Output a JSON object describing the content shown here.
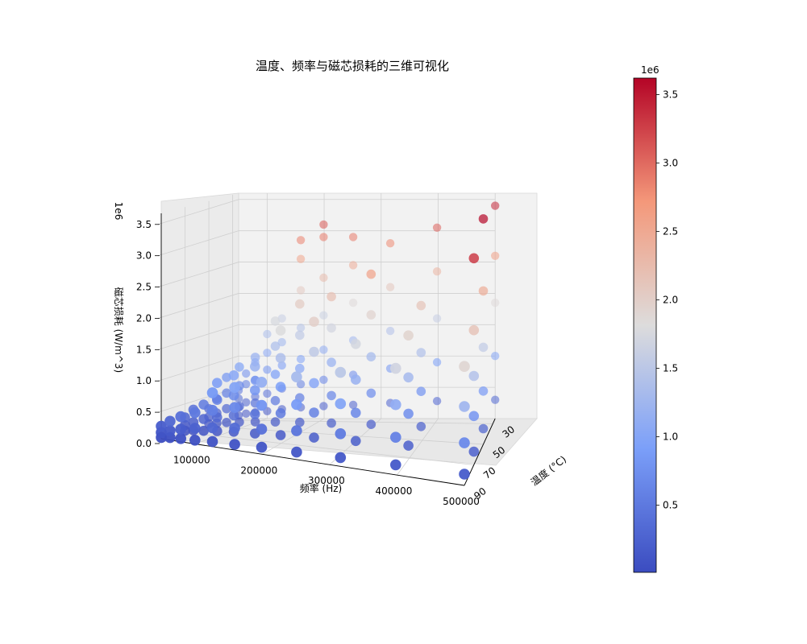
{
  "chart_data": {
    "type": "scatter",
    "projection": "3d",
    "title": "温度、频率与磁芯损耗的三维可视化",
    "xlabel": "频率 (Hz)",
    "ylabel": "温度 (°C)",
    "zlabel": "磁芯损耗 (W/m^3)",
    "z_offset_label": "1e6",
    "xlim": [
      50000,
      500000
    ],
    "ylim": [
      25,
      90
    ],
    "zlim": [
      0,
      3.6
    ],
    "x_ticks": [
      "100000",
      "200000",
      "300000",
      "400000",
      "500000"
    ],
    "y_ticks": [
      "30",
      "50",
      "70",
      "90"
    ],
    "z_ticks": [
      "0.0",
      "0.5",
      "1.0",
      "1.5",
      "2.0",
      "2.5",
      "3.0",
      "3.5"
    ],
    "temperatures": [
      25,
      50,
      70,
      90
    ],
    "frequencies": [
      50000,
      63000,
      79000,
      100000,
      126000,
      159000,
      199000,
      251000,
      316000,
      398000,
      500000
    ],
    "colormap": "coolwarm",
    "colorbar": {
      "offset_label": "1e6",
      "ticks": [
        "0.5",
        "1.0",
        "1.5",
        "2.0",
        "2.5",
        "3.0",
        "3.5"
      ],
      "min": 0.01,
      "max": 3.62
    },
    "grid": true,
    "units_note": "z values in units of 1e6 W/m^3",
    "points": [
      {
        "x": 50000,
        "y": 25,
        "z": 0.05
      },
      {
        "x": 50000,
        "y": 25,
        "z": 0.18
      },
      {
        "x": 50000,
        "y": 25,
        "z": 0.32
      },
      {
        "x": 50000,
        "y": 25,
        "z": 0.45
      },
      {
        "x": 63000,
        "y": 25,
        "z": 0.08
      },
      {
        "x": 63000,
        "y": 25,
        "z": 0.26
      },
      {
        "x": 63000,
        "y": 25,
        "z": 0.55
      },
      {
        "x": 63000,
        "y": 25,
        "z": 0.72
      },
      {
        "x": 79000,
        "y": 25,
        "z": 0.1
      },
      {
        "x": 79000,
        "y": 25,
        "z": 0.35
      },
      {
        "x": 79000,
        "y": 25,
        "z": 0.62
      },
      {
        "x": 79000,
        "y": 25,
        "z": 0.9
      },
      {
        "x": 100000,
        "y": 25,
        "z": 0.12
      },
      {
        "x": 100000,
        "y": 25,
        "z": 0.4
      },
      {
        "x": 100000,
        "y": 25,
        "z": 0.78
      },
      {
        "x": 100000,
        "y": 25,
        "z": 1.05
      },
      {
        "x": 100000,
        "y": 25,
        "z": 1.35
      },
      {
        "x": 126000,
        "y": 25,
        "z": 0.15
      },
      {
        "x": 126000,
        "y": 25,
        "z": 0.48
      },
      {
        "x": 126000,
        "y": 25,
        "z": 0.85
      },
      {
        "x": 126000,
        "y": 25,
        "z": 1.22
      },
      {
        "x": 126000,
        "y": 25,
        "z": 1.6
      },
      {
        "x": 159000,
        "y": 25,
        "z": 0.18
      },
      {
        "x": 159000,
        "y": 25,
        "z": 0.55
      },
      {
        "x": 159000,
        "y": 25,
        "z": 0.95
      },
      {
        "x": 159000,
        "y": 25,
        "z": 1.45
      },
      {
        "x": 159000,
        "y": 25,
        "z": 2.05
      },
      {
        "x": 159000,
        "y": 25,
        "z": 2.55
      },
      {
        "x": 159000,
        "y": 25,
        "z": 2.85
      },
      {
        "x": 199000,
        "y": 25,
        "z": 0.2
      },
      {
        "x": 199000,
        "y": 25,
        "z": 0.62
      },
      {
        "x": 199000,
        "y": 25,
        "z": 1.1
      },
      {
        "x": 199000,
        "y": 25,
        "z": 1.65
      },
      {
        "x": 199000,
        "y": 25,
        "z": 2.25
      },
      {
        "x": 199000,
        "y": 25,
        "z": 2.9
      },
      {
        "x": 199000,
        "y": 25,
        "z": 3.1
      },
      {
        "x": 251000,
        "y": 25,
        "z": 0.22
      },
      {
        "x": 251000,
        "y": 25,
        "z": 0.7
      },
      {
        "x": 251000,
        "y": 25,
        "z": 1.25
      },
      {
        "x": 251000,
        "y": 25,
        "z": 1.85
      },
      {
        "x": 251000,
        "y": 25,
        "z": 2.45
      },
      {
        "x": 251000,
        "y": 25,
        "z": 2.9
      },
      {
        "x": 316000,
        "y": 25,
        "z": 0.25
      },
      {
        "x": 316000,
        "y": 25,
        "z": 0.8
      },
      {
        "x": 316000,
        "y": 25,
        "z": 1.4
      },
      {
        "x": 316000,
        "y": 25,
        "z": 2.1
      },
      {
        "x": 316000,
        "y": 25,
        "z": 2.8
      },
      {
        "x": 398000,
        "y": 25,
        "z": 0.28
      },
      {
        "x": 398000,
        "y": 25,
        "z": 0.9
      },
      {
        "x": 398000,
        "y": 25,
        "z": 1.6
      },
      {
        "x": 398000,
        "y": 25,
        "z": 2.35
      },
      {
        "x": 398000,
        "y": 25,
        "z": 3.05
      },
      {
        "x": 500000,
        "y": 25,
        "z": 0.3
      },
      {
        "x": 500000,
        "y": 25,
        "z": 1.0
      },
      {
        "x": 500000,
        "y": 25,
        "z": 1.85
      },
      {
        "x": 500000,
        "y": 25,
        "z": 2.6
      },
      {
        "x": 500000,
        "y": 25,
        "z": 3.4
      },
      {
        "x": 50000,
        "y": 50,
        "z": 0.04
      },
      {
        "x": 50000,
        "y": 50,
        "z": 0.15
      },
      {
        "x": 50000,
        "y": 50,
        "z": 0.28
      },
      {
        "x": 63000,
        "y": 50,
        "z": 0.06
      },
      {
        "x": 63000,
        "y": 50,
        "z": 0.22
      },
      {
        "x": 63000,
        "y": 50,
        "z": 0.45
      },
      {
        "x": 79000,
        "y": 50,
        "z": 0.08
      },
      {
        "x": 79000,
        "y": 50,
        "z": 0.3
      },
      {
        "x": 79000,
        "y": 50,
        "z": 0.55
      },
      {
        "x": 79000,
        "y": 50,
        "z": 0.8
      },
      {
        "x": 100000,
        "y": 50,
        "z": 0.1
      },
      {
        "x": 100000,
        "y": 50,
        "z": 0.35
      },
      {
        "x": 100000,
        "y": 50,
        "z": 0.68
      },
      {
        "x": 100000,
        "y": 50,
        "z": 0.98
      },
      {
        "x": 126000,
        "y": 50,
        "z": 0.12
      },
      {
        "x": 126000,
        "y": 50,
        "z": 0.42
      },
      {
        "x": 126000,
        "y": 50,
        "z": 0.78
      },
      {
        "x": 126000,
        "y": 50,
        "z": 1.15
      },
      {
        "x": 159000,
        "y": 50,
        "z": 0.14
      },
      {
        "x": 159000,
        "y": 50,
        "z": 0.48
      },
      {
        "x": 159000,
        "y": 50,
        "z": 0.9
      },
      {
        "x": 159000,
        "y": 50,
        "z": 1.35
      },
      {
        "x": 159000,
        "y": 50,
        "z": 1.75
      },
      {
        "x": 199000,
        "y": 50,
        "z": 0.16
      },
      {
        "x": 199000,
        "y": 50,
        "z": 0.55
      },
      {
        "x": 199000,
        "y": 50,
        "z": 1.02
      },
      {
        "x": 199000,
        "y": 50,
        "z": 1.55
      },
      {
        "x": 199000,
        "y": 50,
        "z": 2.05
      },
      {
        "x": 251000,
        "y": 50,
        "z": 0.18
      },
      {
        "x": 251000,
        "y": 50,
        "z": 0.62
      },
      {
        "x": 251000,
        "y": 50,
        "z": 1.15
      },
      {
        "x": 251000,
        "y": 50,
        "z": 1.7
      },
      {
        "x": 251000,
        "y": 50,
        "z": 2.2
      },
      {
        "x": 316000,
        "y": 50,
        "z": 0.2
      },
      {
        "x": 316000,
        "y": 50,
        "z": 0.7
      },
      {
        "x": 316000,
        "y": 50,
        "z": 1.28
      },
      {
        "x": 316000,
        "y": 50,
        "z": 1.95
      },
      {
        "x": 316000,
        "y": 50,
        "z": 2.6
      },
      {
        "x": 398000,
        "y": 50,
        "z": 0.22
      },
      {
        "x": 398000,
        "y": 50,
        "z": 0.78
      },
      {
        "x": 398000,
        "y": 50,
        "z": 1.4
      },
      {
        "x": 398000,
        "y": 50,
        "z": 2.15
      },
      {
        "x": 500000,
        "y": 50,
        "z": 0.25
      },
      {
        "x": 500000,
        "y": 50,
        "z": 0.85
      },
      {
        "x": 500000,
        "y": 50,
        "z": 1.55
      },
      {
        "x": 500000,
        "y": 50,
        "z": 2.45
      },
      {
        "x": 500000,
        "y": 50,
        "z": 3.6
      },
      {
        "x": 50000,
        "y": 70,
        "z": 0.03
      },
      {
        "x": 50000,
        "y": 70,
        "z": 0.12
      },
      {
        "x": 50000,
        "y": 70,
        "z": 0.24
      },
      {
        "x": 63000,
        "y": 70,
        "z": 0.05
      },
      {
        "x": 63000,
        "y": 70,
        "z": 0.18
      },
      {
        "x": 63000,
        "y": 70,
        "z": 0.38
      },
      {
        "x": 79000,
        "y": 70,
        "z": 0.06
      },
      {
        "x": 79000,
        "y": 70,
        "z": 0.25
      },
      {
        "x": 79000,
        "y": 70,
        "z": 0.48
      },
      {
        "x": 100000,
        "y": 70,
        "z": 0.08
      },
      {
        "x": 100000,
        "y": 70,
        "z": 0.3
      },
      {
        "x": 100000,
        "y": 70,
        "z": 0.58
      },
      {
        "x": 100000,
        "y": 70,
        "z": 0.85
      },
      {
        "x": 126000,
        "y": 70,
        "z": 0.1
      },
      {
        "x": 126000,
        "y": 70,
        "z": 0.36
      },
      {
        "x": 126000,
        "y": 70,
        "z": 0.68
      },
      {
        "x": 126000,
        "y": 70,
        "z": 1.0
      },
      {
        "x": 159000,
        "y": 70,
        "z": 0.11
      },
      {
        "x": 159000,
        "y": 70,
        "z": 0.42
      },
      {
        "x": 159000,
        "y": 70,
        "z": 0.8
      },
      {
        "x": 159000,
        "y": 70,
        "z": 1.18
      },
      {
        "x": 199000,
        "y": 70,
        "z": 0.13
      },
      {
        "x": 199000,
        "y": 70,
        "z": 0.48
      },
      {
        "x": 199000,
        "y": 70,
        "z": 0.9
      },
      {
        "x": 199000,
        "y": 70,
        "z": 1.36
      },
      {
        "x": 199000,
        "y": 70,
        "z": 1.8
      },
      {
        "x": 251000,
        "y": 70,
        "z": 0.15
      },
      {
        "x": 251000,
        "y": 70,
        "z": 0.55
      },
      {
        "x": 251000,
        "y": 70,
        "z": 1.02
      },
      {
        "x": 251000,
        "y": 70,
        "z": 1.52
      },
      {
        "x": 251000,
        "y": 70,
        "z": 2.0
      },
      {
        "x": 316000,
        "y": 70,
        "z": 0.17
      },
      {
        "x": 316000,
        "y": 70,
        "z": 0.62
      },
      {
        "x": 316000,
        "y": 70,
        "z": 1.15
      },
      {
        "x": 316000,
        "y": 70,
        "z": 1.72
      },
      {
        "x": 398000,
        "y": 70,
        "z": 0.19
      },
      {
        "x": 398000,
        "y": 70,
        "z": 0.7
      },
      {
        "x": 398000,
        "y": 70,
        "z": 1.28
      },
      {
        "x": 398000,
        "y": 70,
        "z": 1.95
      },
      {
        "x": 500000,
        "y": 70,
        "z": 0.21
      },
      {
        "x": 500000,
        "y": 70,
        "z": 0.78
      },
      {
        "x": 500000,
        "y": 70,
        "z": 1.42
      },
      {
        "x": 500000,
        "y": 70,
        "z": 2.15
      },
      {
        "x": 500000,
        "y": 70,
        "z": 3.3
      },
      {
        "x": 50000,
        "y": 90,
        "z": 0.02
      },
      {
        "x": 50000,
        "y": 90,
        "z": 0.1
      },
      {
        "x": 50000,
        "y": 90,
        "z": 0.2
      },
      {
        "x": 63000,
        "y": 90,
        "z": 0.04
      },
      {
        "x": 63000,
        "y": 90,
        "z": 0.15
      },
      {
        "x": 63000,
        "y": 90,
        "z": 0.3
      },
      {
        "x": 79000,
        "y": 90,
        "z": 0.05
      },
      {
        "x": 79000,
        "y": 90,
        "z": 0.2
      },
      {
        "x": 79000,
        "y": 90,
        "z": 0.4
      },
      {
        "x": 100000,
        "y": 90,
        "z": 0.06
      },
      {
        "x": 100000,
        "y": 90,
        "z": 0.25
      },
      {
        "x": 100000,
        "y": 90,
        "z": 0.5
      },
      {
        "x": 126000,
        "y": 90,
        "z": 0.08
      },
      {
        "x": 126000,
        "y": 90,
        "z": 0.3
      },
      {
        "x": 126000,
        "y": 90,
        "z": 0.58
      },
      {
        "x": 126000,
        "y": 90,
        "z": 0.86
      },
      {
        "x": 159000,
        "y": 90,
        "z": 0.09
      },
      {
        "x": 159000,
        "y": 90,
        "z": 0.35
      },
      {
        "x": 159000,
        "y": 90,
        "z": 0.68
      },
      {
        "x": 159000,
        "y": 90,
        "z": 1.0
      },
      {
        "x": 199000,
        "y": 90,
        "z": 0.11
      },
      {
        "x": 199000,
        "y": 90,
        "z": 0.4
      },
      {
        "x": 199000,
        "y": 90,
        "z": 0.78
      },
      {
        "x": 199000,
        "y": 90,
        "z": 1.15
      },
      {
        "x": 251000,
        "y": 90,
        "z": 0.12
      },
      {
        "x": 251000,
        "y": 90,
        "z": 0.46
      },
      {
        "x": 251000,
        "y": 90,
        "z": 0.88
      },
      {
        "x": 251000,
        "y": 90,
        "z": 1.32
      },
      {
        "x": 316000,
        "y": 90,
        "z": 0.14
      },
      {
        "x": 316000,
        "y": 90,
        "z": 0.52
      },
      {
        "x": 316000,
        "y": 90,
        "z": 1.0
      },
      {
        "x": 316000,
        "y": 90,
        "z": 1.5
      },
      {
        "x": 398000,
        "y": 90,
        "z": 0.16
      },
      {
        "x": 398000,
        "y": 90,
        "z": 0.6
      },
      {
        "x": 398000,
        "y": 90,
        "z": 1.12
      },
      {
        "x": 398000,
        "y": 90,
        "z": 1.7
      },
      {
        "x": 500000,
        "y": 90,
        "z": 0.18
      },
      {
        "x": 500000,
        "y": 90,
        "z": 0.68
      },
      {
        "x": 500000,
        "y": 90,
        "z": 1.26
      },
      {
        "x": 500000,
        "y": 90,
        "z": 1.9
      }
    ]
  }
}
